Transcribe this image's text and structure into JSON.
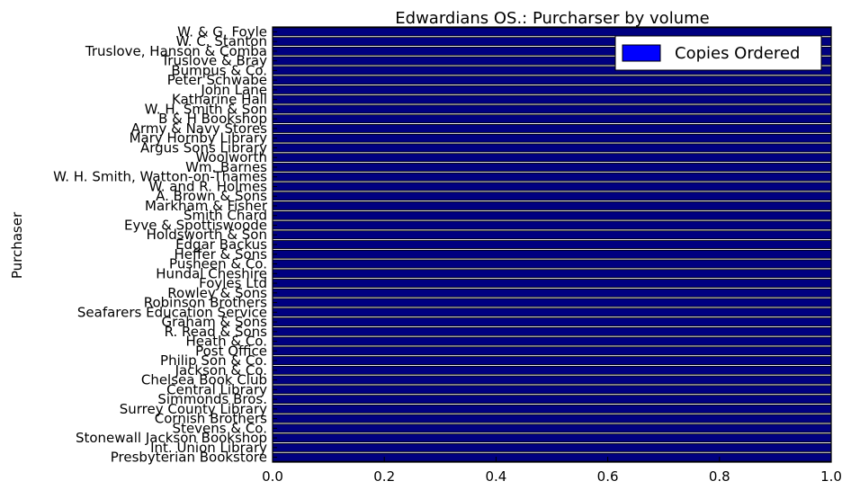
{
  "chart_data": {
    "type": "bar",
    "orientation": "horizontal",
    "title": "Edwardians OS.: Purcharser by volume",
    "xlabel": "",
    "ylabel": "Purchaser",
    "xlim": [
      0.0,
      1.0
    ],
    "xticks": [
      "0.0",
      "0.2",
      "0.4",
      "0.6",
      "0.8",
      "1.0"
    ],
    "grid": false,
    "legend_position": "top-right",
    "series": [
      {
        "name": "Copies Ordered",
        "color": "#0000ff"
      }
    ],
    "categories": [
      "W. & G. Foyle",
      "W. C. Stanton",
      "Truslove, Hanson & Comba",
      "Truslove & Bray",
      "Bumpus & Co.",
      "Peter Schwabe",
      "John Lane",
      "Katharine Hall",
      "W. H. Smith & Son",
      "B & H Bookshop",
      "Army & Navy Stores",
      "Mary Hornby Library",
      "Argus Sons Library",
      "Woolworth",
      "Wm. Barnes",
      "W. H. Smith, Watton-on-Thames",
      "W. and R. Holmes",
      "A. Brown & Sons",
      "Markham & Fisher",
      "Smith Chard",
      "Eyve & Spottiswoode",
      "Holdsworth & Son",
      "Edgar Backus",
      "Heffer & Sons",
      "Pusheen & Co.",
      "Hundal Cheshire",
      "Foyles Ltd",
      "Rowley & Sons",
      "Robinson Brothers",
      "Seafarers Education Service",
      "Graham & Sons",
      "R. Read & Sons",
      "Heath & Co.",
      "Post Office",
      "Philip Son & Co.",
      "Jackson & Co.",
      "Chelsea Book Club",
      "Central Library",
      "Simmonds Bros.",
      "Surrey County Library",
      "Cornish Brothers",
      "Stevens & Co.",
      "Stonewall Jackson Bookshop",
      "Int. Union Library",
      "Presbyterian Bookstore"
    ]
  }
}
